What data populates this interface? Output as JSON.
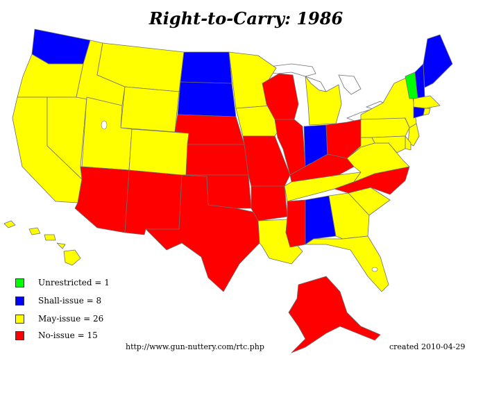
{
  "title": "Right-to-Carry: 1986",
  "categories": {
    "unrestricted": {
      "label": "Unrestricted = 1",
      "count": 1,
      "color": "#00ff00"
    },
    "shall": {
      "label": "Shall-issue = 8",
      "count": 8,
      "color": "#0000ff"
    },
    "may": {
      "label": "May-issue = 26",
      "count": 26,
      "color": "#ffff00"
    },
    "no": {
      "label": "No-issue = 15",
      "count": 15,
      "color": "#ff0000"
    }
  },
  "states": {
    "WA": "shall",
    "OR": "may",
    "CA": "may",
    "NV": "may",
    "ID": "may",
    "MT": "may",
    "WY": "may",
    "UT": "may",
    "CO": "may",
    "AZ": "no",
    "NM": "no",
    "TX": "no",
    "ND": "shall",
    "SD": "shall",
    "NE": "no",
    "KS": "no",
    "OK": "no",
    "MN": "may",
    "IA": "may",
    "MO": "no",
    "AR": "no",
    "LA": "may",
    "WI": "no",
    "IL": "no",
    "MS": "no",
    "MI": "may",
    "IN": "shall",
    "OH": "no",
    "KY": "no",
    "TN": "may",
    "AL": "shall",
    "GA": "may",
    "FL": "may",
    "SC": "may",
    "NC": "no",
    "VA": "may",
    "WV": "may",
    "PA": "may",
    "NY": "may",
    "VT": "unrestricted",
    "NH": "shall",
    "ME": "shall",
    "MA": "may",
    "CT": "shall",
    "RI": "may",
    "NJ": "may",
    "DE": "may",
    "MD": "may",
    "AK": "no",
    "HI": "may"
  },
  "source_url": "http://www.gun-nuttery.com/rtc.php",
  "created": "created 2010-04-29"
}
